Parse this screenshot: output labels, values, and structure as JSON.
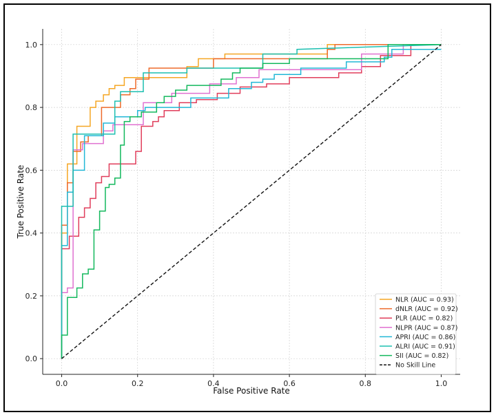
{
  "chart_data": {
    "type": "line",
    "title": "",
    "xlabel": "False Positive Rate",
    "ylabel": "True Positive Rate",
    "xlim": [
      -0.05,
      1.05
    ],
    "ylim": [
      -0.05,
      1.05
    ],
    "xticks": [
      0.0,
      0.2,
      0.4,
      0.6,
      0.8,
      1.0
    ],
    "yticks": [
      0.0,
      0.2,
      0.4,
      0.6,
      0.8,
      1.0
    ],
    "xtick_labels": [
      "0.0",
      "0.2",
      "0.4",
      "0.6",
      "0.8",
      "1.0"
    ],
    "ytick_labels": [
      "0.0",
      "0.2",
      "0.4",
      "0.6",
      "0.8",
      "1.0"
    ],
    "grid": true,
    "legend_position": "lower-right",
    "series": [
      {
        "name": "NLR (AUC = 0.93)",
        "color": "#f5a623",
        "x": [
          0,
          0,
          0.015,
          0.015,
          0.04,
          0.04,
          0.075,
          0.075,
          0.09,
          0.09,
          0.11,
          0.11,
          0.125,
          0.125,
          0.14,
          0.14,
          0.165,
          0.165,
          0.2,
          0.2,
          0.33,
          0.33,
          0.36,
          0.36,
          0.43,
          0.43,
          0.58,
          0.58,
          0.7,
          0.7,
          1.0
        ],
        "y": [
          0,
          0.4,
          0.4,
          0.62,
          0.62,
          0.74,
          0.74,
          0.8,
          0.8,
          0.82,
          0.82,
          0.84,
          0.84,
          0.86,
          0.86,
          0.87,
          0.87,
          0.895,
          0.895,
          0.895,
          0.895,
          0.93,
          0.93,
          0.955,
          0.955,
          0.97,
          0.97,
          0.97,
          0.97,
          1.0,
          1.0
        ]
      },
      {
        "name": "dNLR (AUC = 0.92)",
        "color": "#ee6a2a",
        "x": [
          0,
          0,
          0.015,
          0.015,
          0.03,
          0.03,
          0.05,
          0.05,
          0.07,
          0.07,
          0.105,
          0.105,
          0.155,
          0.155,
          0.18,
          0.18,
          0.195,
          0.195,
          0.23,
          0.23,
          0.4,
          0.4,
          0.7,
          0.7,
          0.72,
          0.72,
          1.0
        ],
        "y": [
          0,
          0.425,
          0.425,
          0.56,
          0.56,
          0.66,
          0.66,
          0.69,
          0.69,
          0.71,
          0.71,
          0.8,
          0.8,
          0.84,
          0.84,
          0.86,
          0.86,
          0.89,
          0.89,
          0.925,
          0.925,
          0.955,
          0.955,
          0.985,
          0.985,
          1.0,
          1.0
        ]
      },
      {
        "name": "PLR (AUC = 0.82)",
        "color": "#e03c5a",
        "x": [
          0,
          0,
          0.02,
          0.02,
          0.045,
          0.045,
          0.06,
          0.06,
          0.075,
          0.075,
          0.09,
          0.09,
          0.105,
          0.105,
          0.125,
          0.125,
          0.195,
          0.195,
          0.21,
          0.21,
          0.24,
          0.24,
          0.255,
          0.255,
          0.27,
          0.27,
          0.31,
          0.31,
          0.355,
          0.355,
          0.41,
          0.41,
          0.47,
          0.47,
          0.54,
          0.54,
          0.6,
          0.6,
          0.73,
          0.73,
          0.79,
          0.79,
          0.84,
          0.84,
          0.92,
          0.92,
          1.0
        ],
        "y": [
          0,
          0.35,
          0.35,
          0.39,
          0.39,
          0.45,
          0.45,
          0.48,
          0.48,
          0.51,
          0.51,
          0.56,
          0.56,
          0.58,
          0.58,
          0.62,
          0.62,
          0.66,
          0.66,
          0.74,
          0.74,
          0.755,
          0.755,
          0.77,
          0.77,
          0.79,
          0.79,
          0.815,
          0.815,
          0.825,
          0.825,
          0.845,
          0.845,
          0.865,
          0.865,
          0.875,
          0.875,
          0.895,
          0.895,
          0.91,
          0.91,
          0.93,
          0.93,
          0.965,
          0.965,
          1.0,
          1.0
        ]
      },
      {
        "name": "NLPR (AUC = 0.87)",
        "color": "#e070d0",
        "x": [
          0,
          0,
          0.015,
          0.015,
          0.03,
          0.03,
          0.055,
          0.055,
          0.11,
          0.11,
          0.135,
          0.135,
          0.215,
          0.215,
          0.29,
          0.29,
          0.39,
          0.39,
          0.46,
          0.46,
          0.52,
          0.52,
          0.79,
          0.79,
          0.9,
          0.9,
          1.0
        ],
        "y": [
          0,
          0.21,
          0.21,
          0.225,
          0.225,
          0.665,
          0.665,
          0.685,
          0.685,
          0.725,
          0.725,
          0.745,
          0.745,
          0.815,
          0.815,
          0.845,
          0.845,
          0.875,
          0.875,
          0.895,
          0.895,
          0.92,
          0.92,
          0.97,
          0.97,
          1.0,
          1.0
        ]
      },
      {
        "name": "APRI (AUC = 0.86)",
        "color": "#21b7d6",
        "x": [
          0,
          0,
          0.015,
          0.015,
          0.03,
          0.03,
          0.06,
          0.06,
          0.11,
          0.11,
          0.14,
          0.14,
          0.2,
          0.2,
          0.22,
          0.22,
          0.27,
          0.27,
          0.34,
          0.34,
          0.44,
          0.44,
          0.5,
          0.5,
          0.53,
          0.53,
          0.56,
          0.56,
          0.63,
          0.63,
          0.75,
          0.75,
          0.85,
          0.85,
          0.87,
          0.87,
          1.0
        ],
        "y": [
          0,
          0.36,
          0.36,
          0.53,
          0.53,
          0.6,
          0.6,
          0.71,
          0.71,
          0.75,
          0.75,
          0.77,
          0.77,
          0.79,
          0.79,
          0.8,
          0.8,
          0.8,
          0.8,
          0.83,
          0.83,
          0.86,
          0.86,
          0.88,
          0.88,
          0.89,
          0.89,
          0.905,
          0.905,
          0.925,
          0.925,
          0.945,
          0.945,
          0.96,
          0.96,
          0.985,
          0.985
        ]
      },
      {
        "name": "ALRI (AUC = 0.91)",
        "color": "#1bbfb0",
        "x": [
          0,
          0,
          0.015,
          0.015,
          0.03,
          0.03,
          0.06,
          0.06,
          0.085,
          0.085,
          0.1,
          0.1,
          0.14,
          0.14,
          0.155,
          0.155,
          0.17,
          0.17,
          0.215,
          0.215,
          0.29,
          0.29,
          0.33,
          0.33,
          0.53,
          0.53,
          0.62,
          0.62,
          1.0
        ],
        "y": [
          0,
          0.485,
          0.485,
          0.485,
          0.485,
          0.715,
          0.715,
          0.715,
          0.715,
          0.715,
          0.715,
          0.715,
          0.715,
          0.82,
          0.82,
          0.85,
          0.85,
          0.85,
          0.85,
          0.91,
          0.91,
          0.91,
          0.91,
          0.925,
          0.925,
          0.97,
          0.97,
          0.985,
          1.0
        ],
        "note": "approximate stepwise trace"
      },
      {
        "name": "SII (AUC = 0.82)",
        "color": "#12b85c",
        "x": [
          0,
          0,
          0.015,
          0.015,
          0.04,
          0.04,
          0.055,
          0.055,
          0.07,
          0.07,
          0.085,
          0.085,
          0.1,
          0.1,
          0.115,
          0.115,
          0.125,
          0.125,
          0.14,
          0.14,
          0.155,
          0.155,
          0.165,
          0.165,
          0.18,
          0.18,
          0.21,
          0.21,
          0.25,
          0.25,
          0.27,
          0.27,
          0.3,
          0.3,
          0.33,
          0.33,
          0.42,
          0.42,
          0.45,
          0.45,
          0.47,
          0.47,
          0.53,
          0.53,
          0.6,
          0.6,
          0.86,
          0.86,
          1.0
        ],
        "y": [
          0,
          0.075,
          0.075,
          0.195,
          0.195,
          0.225,
          0.225,
          0.27,
          0.27,
          0.285,
          0.285,
          0.41,
          0.41,
          0.47,
          0.47,
          0.545,
          0.545,
          0.555,
          0.555,
          0.575,
          0.575,
          0.68,
          0.68,
          0.755,
          0.755,
          0.77,
          0.77,
          0.785,
          0.785,
          0.815,
          0.815,
          0.835,
          0.835,
          0.855,
          0.855,
          0.87,
          0.87,
          0.89,
          0.89,
          0.91,
          0.91,
          0.925,
          0.925,
          0.94,
          0.94,
          0.955,
          0.955,
          1.0,
          1.0
        ]
      },
      {
        "name": "No Skill Line",
        "color": "#111111",
        "dashed": true,
        "x": [
          0,
          1
        ],
        "y": [
          0,
          1
        ]
      }
    ]
  }
}
